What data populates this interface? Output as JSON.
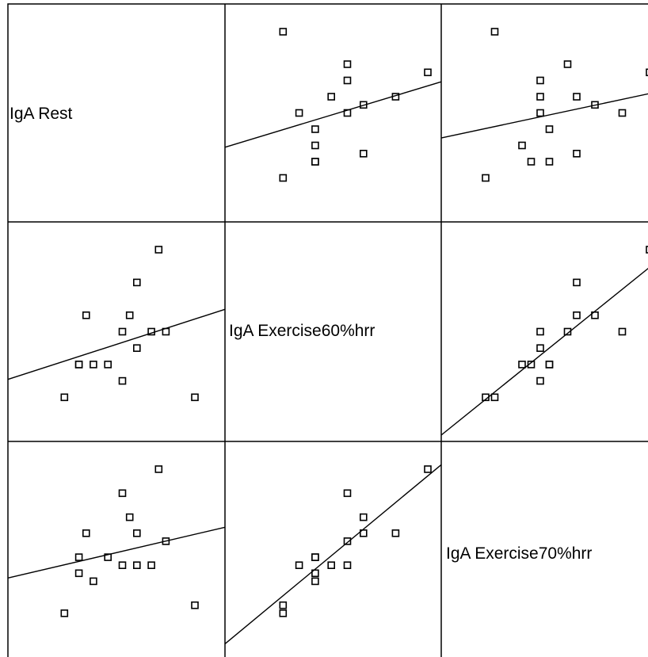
{
  "chart_data": {
    "type": "scatter-matrix",
    "variables": [
      "IgA Rest",
      "IgA Exercise60%hrr",
      "IgA Exercise70%hrr"
    ],
    "ranges": [
      [
        0,
        100
      ],
      [
        0,
        100
      ],
      [
        0,
        100
      ]
    ],
    "observations": [
      [
        10,
        10,
        10
      ],
      [
        20,
        30,
        35
      ],
      [
        20,
        30,
        45
      ],
      [
        25,
        60,
        60
      ],
      [
        30,
        30,
        30
      ],
      [
        40,
        30,
        45
      ],
      [
        50,
        20,
        40
      ],
      [
        50,
        50,
        85
      ],
      [
        55,
        60,
        70
      ],
      [
        60,
        40,
        40
      ],
      [
        60,
        80,
        60
      ],
      [
        70,
        50,
        40
      ],
      [
        75,
        100,
        100
      ],
      [
        80,
        50,
        55
      ],
      [
        100,
        10,
        15
      ]
    ],
    "fit_lines": true,
    "grid": false,
    "legend": "none"
  }
}
